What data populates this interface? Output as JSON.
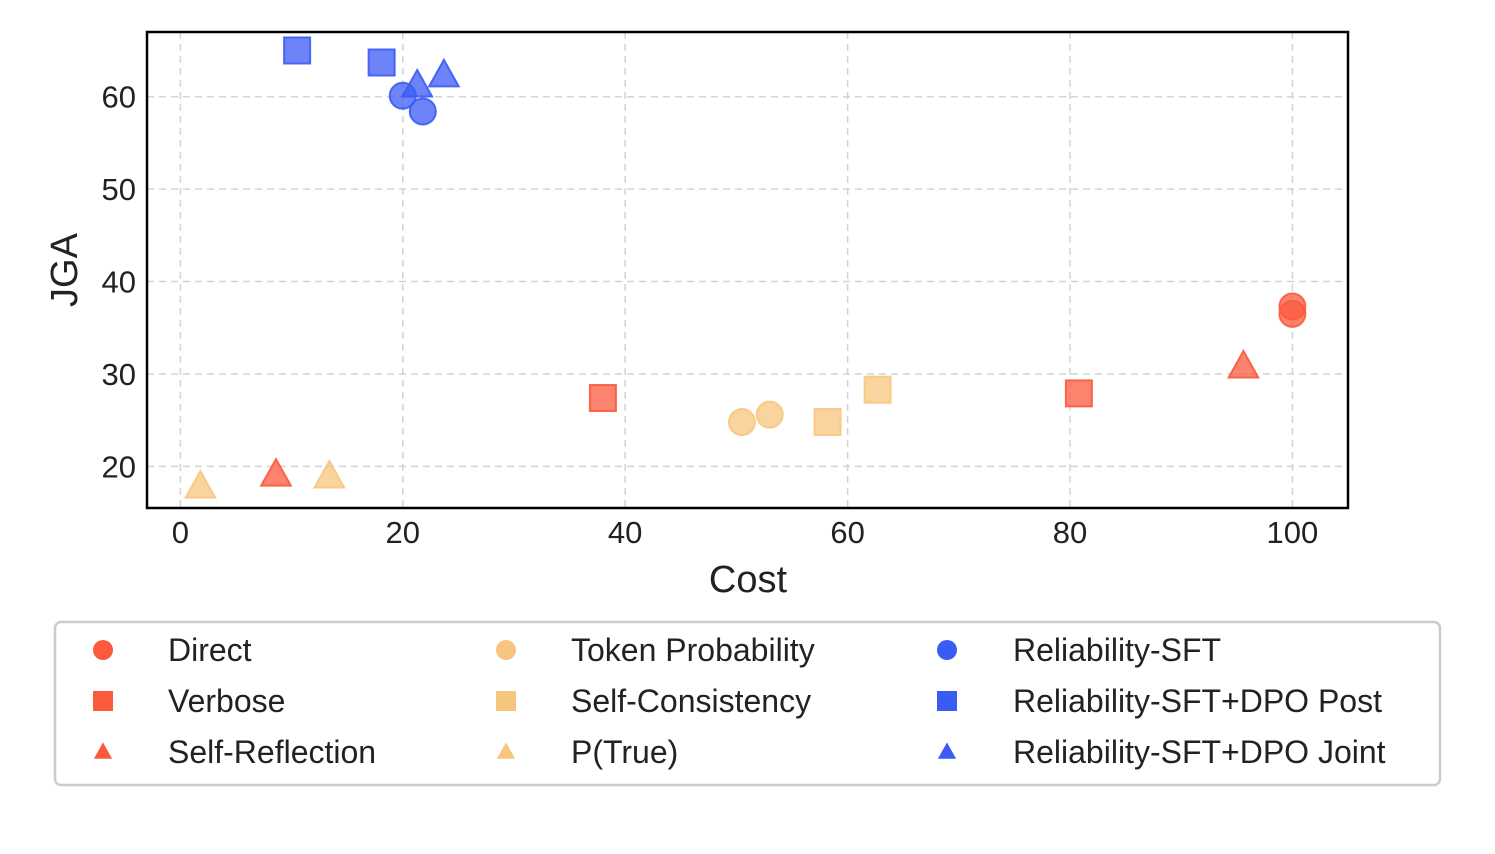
{
  "chart_data": {
    "type": "scatter",
    "title": "",
    "xlabel": "Cost",
    "ylabel": "JGA",
    "xlim": [
      -3,
      105
    ],
    "ylim": [
      15.5,
      67
    ],
    "xticks": [
      0,
      20,
      40,
      60,
      80,
      100
    ],
    "yticks": [
      20,
      30,
      40,
      50,
      60
    ],
    "grid": true,
    "legend_position": "bottom",
    "colors": {
      "Direct": "#fb5a3c",
      "Verbose": "#fb5a3c",
      "Self-Reflection": "#fb5a3c",
      "Token Probability": "#f7c67e",
      "Self-Consistency": "#f7c67e",
      "P(True)": "#f7c67e",
      "Reliability-SFT": "#3b5bf5",
      "Reliability-SFT+DPO Post": "#3b5bf5",
      "Reliability-SFT+DPO Joint": "#3b5bf5"
    },
    "series": [
      {
        "name": "Direct",
        "marker": "circle",
        "color": "#fb5a3c",
        "points": [
          [
            100,
            37.3
          ],
          [
            100,
            36.5
          ]
        ]
      },
      {
        "name": "Verbose",
        "marker": "square",
        "color": "#fb5a3c",
        "points": [
          [
            38,
            27.4
          ],
          [
            80.8,
            27.9
          ]
        ]
      },
      {
        "name": "Self-Reflection",
        "marker": "triangle",
        "color": "#fb5a3c",
        "points": [
          [
            8.6,
            19.1
          ],
          [
            95.6,
            30.8
          ]
        ]
      },
      {
        "name": "Token Probability",
        "marker": "circle",
        "color": "#f7c67e",
        "points": [
          [
            50.5,
            24.8
          ],
          [
            53,
            25.6
          ]
        ]
      },
      {
        "name": "Self-Consistency",
        "marker": "square",
        "color": "#f7c67e",
        "points": [
          [
            58.2,
            24.8
          ],
          [
            62.7,
            28.3
          ]
        ]
      },
      {
        "name": "P(True)",
        "marker": "triangle",
        "color": "#f7c67e",
        "points": [
          [
            1.8,
            17.8
          ],
          [
            13.4,
            18.9
          ]
        ]
      },
      {
        "name": "Reliability-SFT",
        "marker": "circle",
        "color": "#3b5bf5",
        "points": [
          [
            20,
            60.1
          ],
          [
            21.8,
            58.4
          ]
        ]
      },
      {
        "name": "Reliability-SFT+DPO Post",
        "marker": "square",
        "color": "#3b5bf5",
        "points": [
          [
            10.5,
            65
          ],
          [
            18.1,
            63.7
          ]
        ]
      },
      {
        "name": "Reliability-SFT+DPO Joint",
        "marker": "triangle",
        "color": "#3b5bf5",
        "points": [
          [
            21.3,
            61.2
          ],
          [
            23.7,
            62.3
          ]
        ]
      }
    ]
  }
}
